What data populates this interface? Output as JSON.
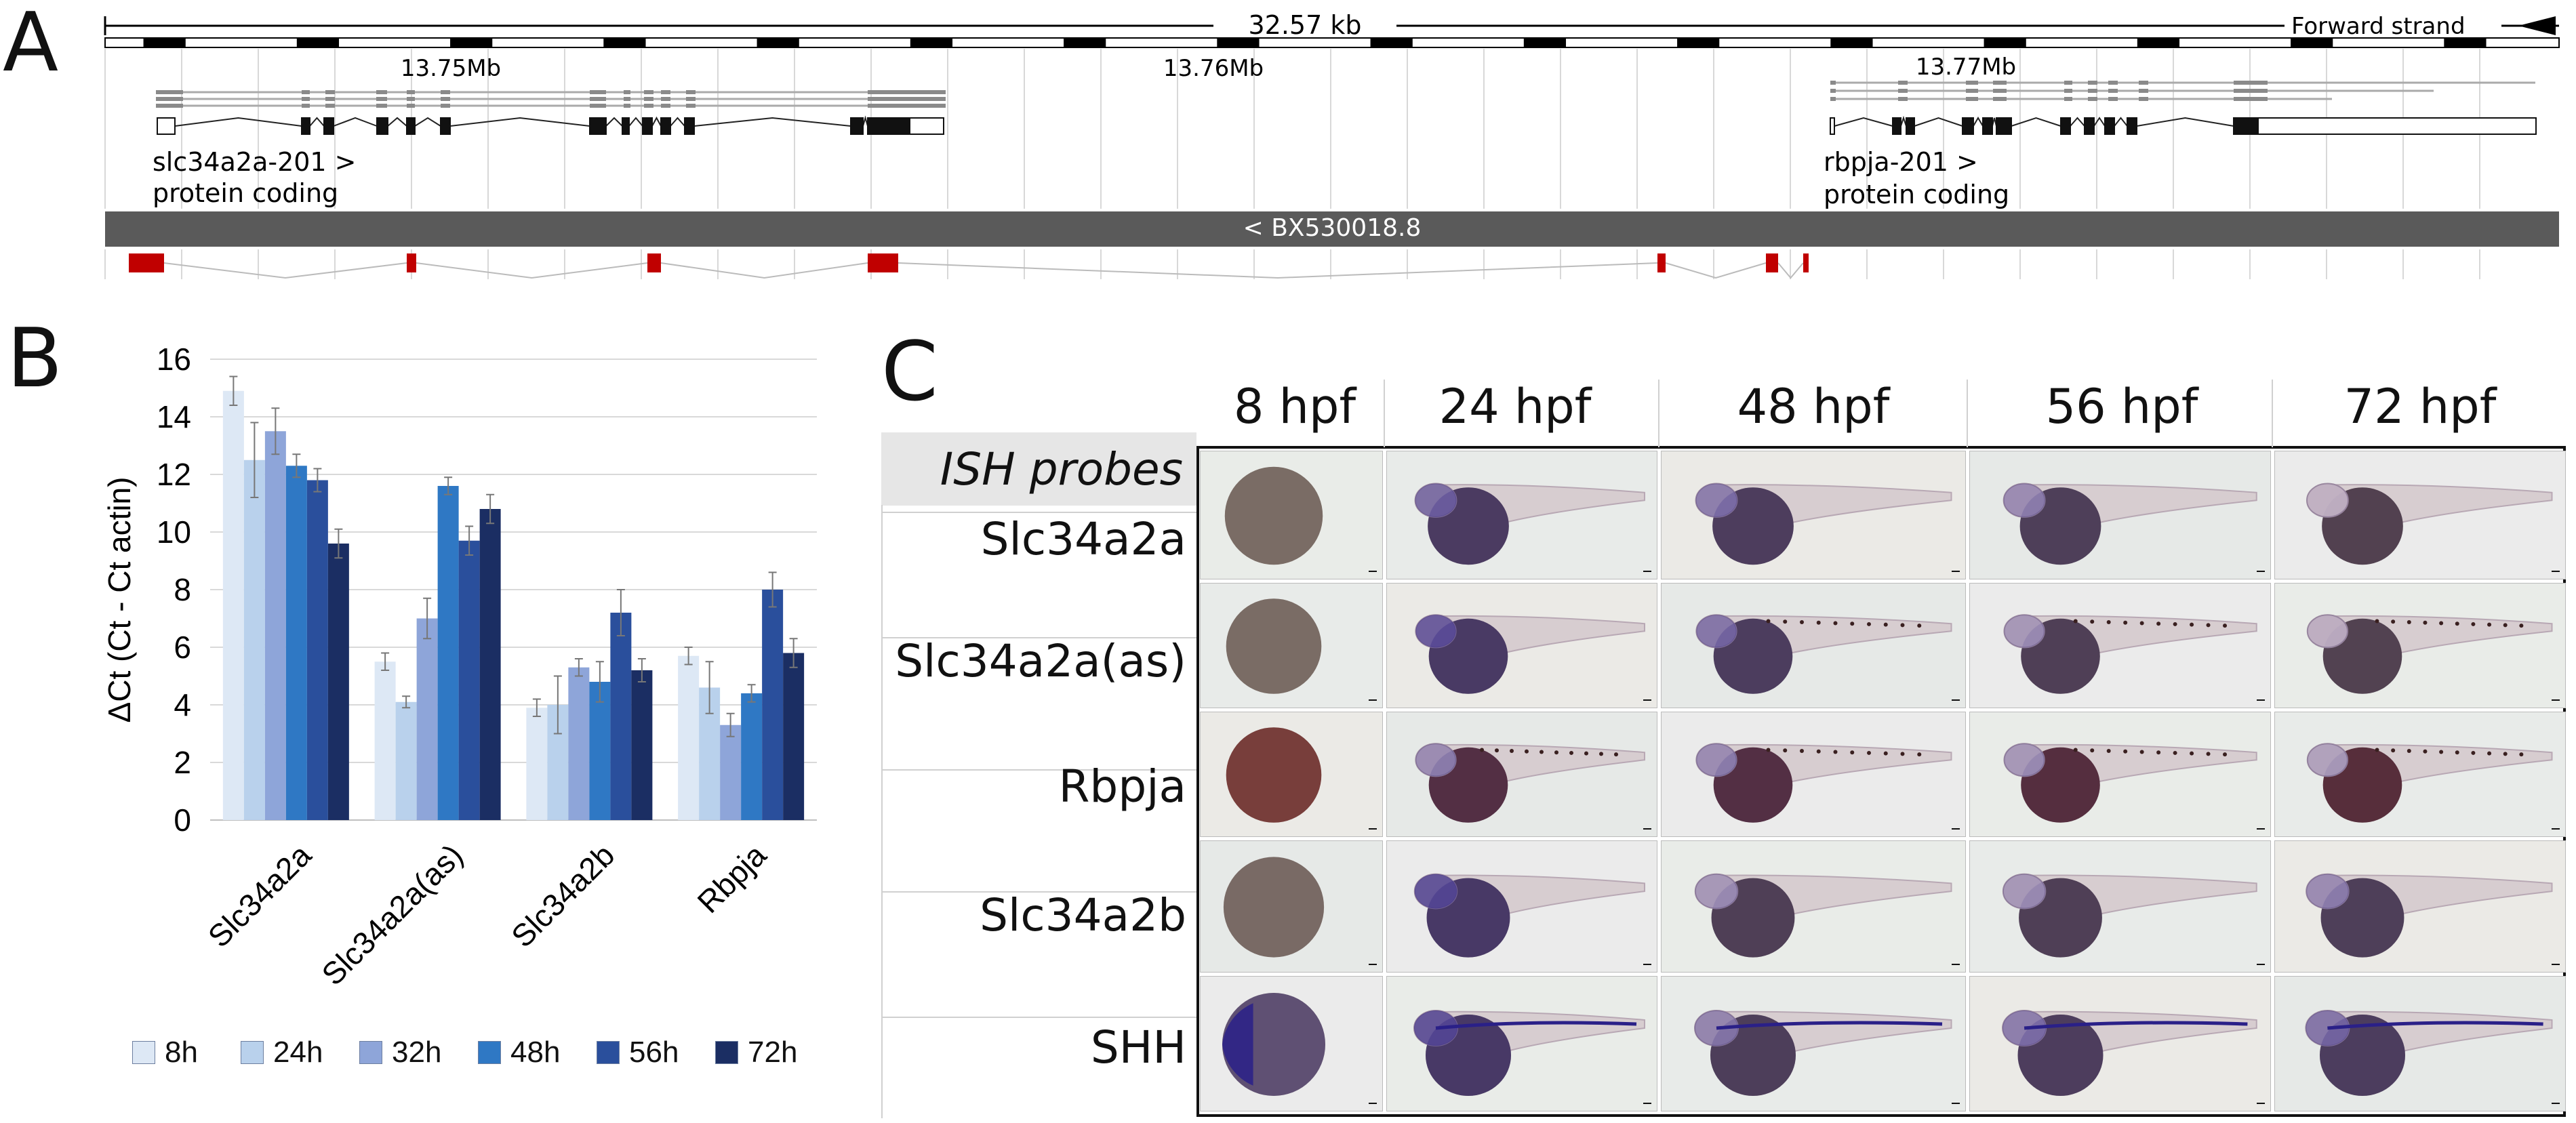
{
  "panel_labels": {
    "a": "A",
    "b": "B",
    "c": "C"
  },
  "panelA": {
    "scale_text": "32.57 kb",
    "strand_text": "Forward strand",
    "positions": [
      "13.75Mb",
      "13.76Mb",
      "13.77Mb"
    ],
    "transcript1_name": "slc34a2a-201 >",
    "transcript1_type": "protein coding",
    "transcript2_name": "rbpja-201 >",
    "transcript2_type": "protein coding",
    "antisense_name": "< BX530018.8",
    "colors": {
      "exon": "#111111",
      "antisense": "#5a5a5a",
      "lnc_exon": "#c00000",
      "ruler": "#000000"
    }
  },
  "chart_data": {
    "type": "bar",
    "ylabel": "ΔCt (Ct  - Ct actin)",
    "ylim": [
      0,
      16
    ],
    "yticks": [
      0,
      2,
      4,
      6,
      8,
      10,
      12,
      14,
      16
    ],
    "categories": [
      "Slc34a2a",
      "Slc34a2a(as)",
      "Slc34a2b",
      "Rbpja"
    ],
    "series": [
      {
        "name": "8h",
        "color": "#dde8f5",
        "values": [
          14.9,
          5.5,
          3.9,
          5.7
        ],
        "errors": [
          0.5,
          0.3,
          0.3,
          0.3
        ]
      },
      {
        "name": "24h",
        "color": "#b9d1ec",
        "values": [
          12.5,
          4.1,
          4.0,
          4.6
        ],
        "errors": [
          1.3,
          0.2,
          1.0,
          0.9
        ]
      },
      {
        "name": "32h",
        "color": "#8ea5d9",
        "values": [
          13.5,
          7.0,
          5.3,
          3.3
        ],
        "errors": [
          0.8,
          0.7,
          0.3,
          0.4
        ]
      },
      {
        "name": "48h",
        "color": "#2f78c4",
        "values": [
          12.3,
          11.6,
          4.8,
          4.4
        ],
        "errors": [
          0.4,
          0.3,
          0.7,
          0.3
        ]
      },
      {
        "name": "56h",
        "color": "#2a4f9c",
        "values": [
          11.8,
          9.7,
          7.2,
          8.0
        ],
        "errors": [
          0.4,
          0.5,
          0.8,
          0.6
        ]
      },
      {
        "name": "72h",
        "color": "#1b2e63",
        "values": [
          9.6,
          10.8,
          5.2,
          5.8
        ],
        "errors": [
          0.5,
          0.5,
          0.4,
          0.5
        ]
      }
    ],
    "legend_position": "bottom",
    "grid": true
  },
  "ish": {
    "probe_header": "ISH probes",
    "columns": [
      "8 hpf",
      "24 hpf",
      "48 hpf",
      "56 hpf",
      "72 hpf"
    ],
    "rows": [
      "Slc34a2a",
      "Slc34a2a(as)",
      "Rbpja",
      "Slc34a2b",
      "SHH"
    ],
    "stain_color": "#3b2d86",
    "yolk_color": "#4a3a48"
  }
}
